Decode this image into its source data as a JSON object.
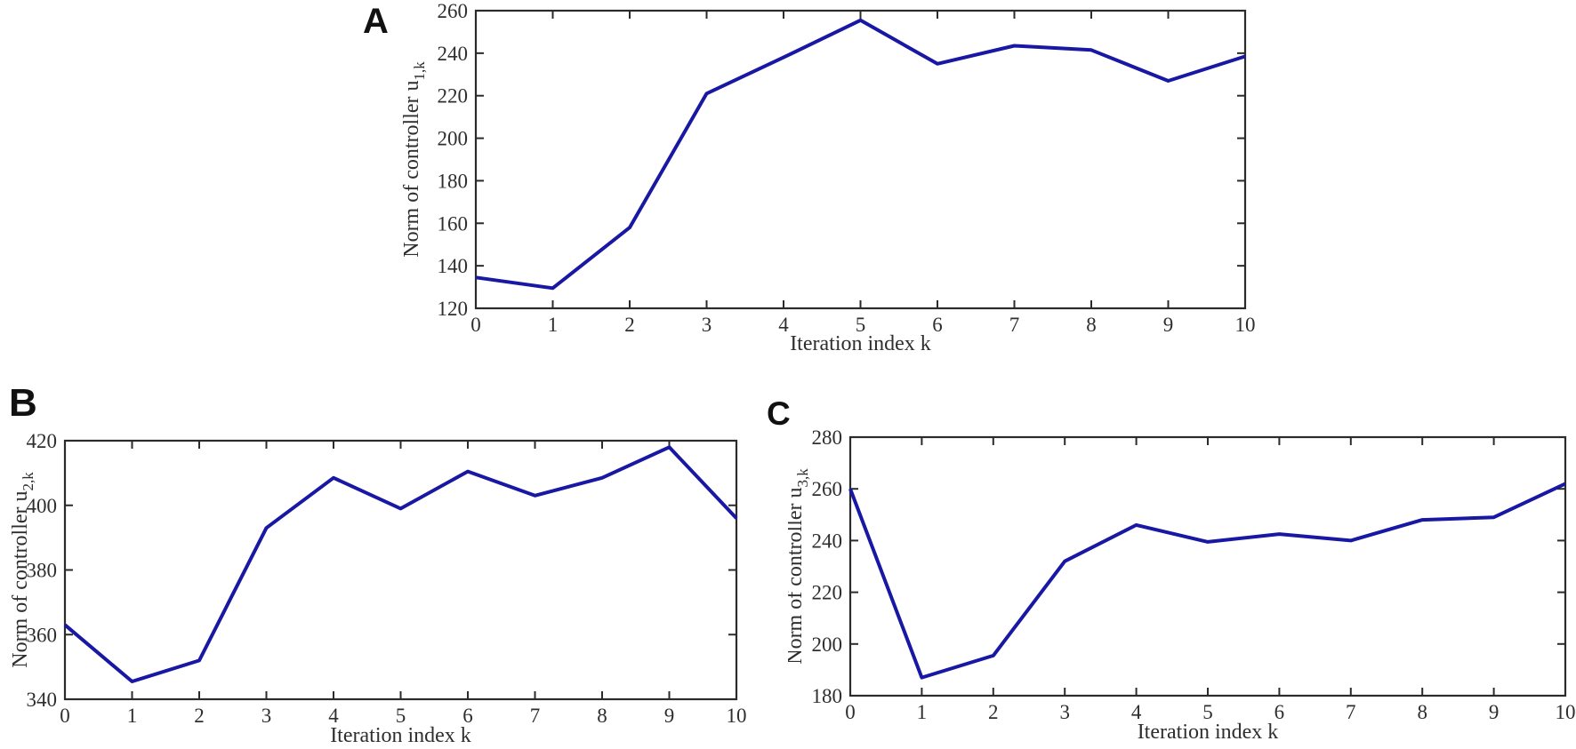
{
  "figure": {
    "background_color": "#ffffff",
    "panel_labels": [
      "A",
      "B",
      "C"
    ]
  },
  "chart_data": [
    {
      "panel_label": "A",
      "type": "line",
      "x": [
        0,
        1,
        2,
        3,
        4,
        5,
        6,
        7,
        8,
        9,
        10
      ],
      "values": [
        134.5,
        129.5,
        158,
        221,
        238,
        255.5,
        235,
        243.5,
        241.5,
        227,
        238.5
      ],
      "title": "",
      "xlabel": "Iteration index k",
      "ylabel": "Norm of controller u",
      "ylabel_subscript": "1,k",
      "xlim": [
        0,
        10
      ],
      "ylim": [
        120,
        260
      ],
      "xticks": [
        0,
        1,
        2,
        3,
        4,
        5,
        6,
        7,
        8,
        9,
        10
      ],
      "yticks": [
        120,
        140,
        160,
        180,
        200,
        220,
        240,
        260
      ],
      "grid": false,
      "legend": null,
      "line_color": "#1818a4",
      "axis_color": "#2b2b2b",
      "text_color": "#2e2e2e"
    },
    {
      "panel_label": "B",
      "type": "line",
      "x": [
        0,
        1,
        2,
        3,
        4,
        5,
        6,
        7,
        8,
        9,
        10
      ],
      "values": [
        363,
        345.5,
        352,
        393,
        408.5,
        399,
        410.5,
        403,
        408.5,
        418,
        396
      ],
      "title": "",
      "xlabel": "Iteration index k",
      "ylabel": "Norm of controller u",
      "ylabel_subscript": "2,k",
      "xlim": [
        0,
        10
      ],
      "ylim": [
        340,
        420
      ],
      "xticks": [
        0,
        1,
        2,
        3,
        4,
        5,
        6,
        7,
        8,
        9,
        10
      ],
      "yticks": [
        340,
        360,
        380,
        400,
        420
      ],
      "grid": false,
      "legend": null,
      "line_color": "#1818a4",
      "axis_color": "#2b2b2b",
      "text_color": "#2e2e2e"
    },
    {
      "panel_label": "C",
      "type": "line",
      "x": [
        0,
        1,
        2,
        3,
        4,
        5,
        6,
        7,
        8,
        9,
        10
      ],
      "values": [
        260,
        187,
        195.5,
        232,
        246,
        239.5,
        242.5,
        240,
        248,
        249,
        262
      ],
      "title": "",
      "xlabel": "Iteration index k",
      "ylabel": "Norm of controller u",
      "ylabel_subscript": "3,k",
      "xlim": [
        0,
        10
      ],
      "ylim": [
        180,
        280
      ],
      "xticks": [
        0,
        1,
        2,
        3,
        4,
        5,
        6,
        7,
        8,
        9,
        10
      ],
      "yticks": [
        180,
        200,
        220,
        240,
        260,
        280
      ],
      "grid": false,
      "legend": null,
      "line_color": "#1818a4",
      "axis_color": "#2b2b2b",
      "text_color": "#2e2e2e"
    }
  ]
}
